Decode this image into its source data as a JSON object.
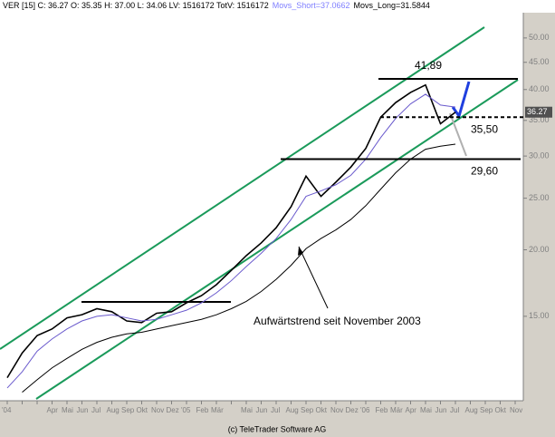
{
  "header": {
    "quote": "VER [15] C: 36.27 O: 35.35 H: 37.00 L: 34.06 LV: 1516172 TotV: 1516172",
    "short_ma": "Movs_Short=37.0662",
    "long_ma": "Movs_Long=31.5844"
  },
  "footer": "(c) TeleTrader Software AG",
  "chart_data": {
    "type": "line",
    "categories": [
      "'04",
      null,
      null,
      "Apr",
      "Mai",
      "Jun",
      "Jul",
      "Aug",
      "Sep",
      "Okt",
      "Nov",
      "Dez",
      "'05",
      "Feb",
      "Mär",
      null,
      "Mai",
      "Jun",
      "Jul",
      "Aug",
      "Sep",
      "Okt",
      "Nov",
      "Dez",
      "'06",
      "Feb",
      "Mär",
      "Apr",
      "Mai",
      "Jun",
      "Jul",
      "Aug",
      "Sep",
      "Okt",
      "Nov"
    ],
    "series": [
      {
        "color": "#000000",
        "values": [
          11.5,
          12.8,
          13.8,
          14.2,
          14.9,
          15.1,
          15.5,
          15.3,
          14.7,
          14.6,
          15.2,
          15.3,
          15.9,
          16.4,
          17.2,
          18.3,
          19.5,
          20.6,
          22.0,
          24.1,
          27.5,
          25.2,
          26.8,
          28.6,
          31.0,
          35.5,
          37.8,
          39.5,
          40.8,
          34.5,
          36.27,
          null,
          null,
          null,
          null
        ]
      },
      {
        "color": "#6a5acd",
        "values": [
          11.0,
          11.8,
          12.9,
          13.6,
          14.2,
          14.7,
          15.0,
          15.1,
          14.9,
          14.7,
          14.8,
          15.1,
          15.4,
          15.9,
          16.6,
          17.5,
          18.6,
          19.7,
          21.0,
          22.8,
          25.2,
          25.8,
          26.5,
          27.6,
          29.6,
          32.5,
          35.3,
          37.6,
          39.2,
          37.4,
          37.07,
          null,
          null,
          null,
          null
        ]
      },
      {
        "color": "#000000",
        "values": [
          null,
          10.8,
          11.4,
          12.0,
          12.5,
          13.0,
          13.4,
          13.7,
          13.9,
          14.0,
          14.2,
          14.4,
          14.6,
          14.8,
          15.1,
          15.5,
          16.0,
          16.7,
          17.6,
          18.7,
          20.1,
          21.0,
          21.8,
          22.8,
          24.2,
          26.0,
          27.9,
          29.6,
          30.9,
          31.3,
          31.58,
          null,
          null,
          null,
          null
        ]
      }
    ],
    "log_scale": true,
    "ylim": [
      10.7,
      57.1
    ],
    "yticks": [
      {
        "value": 15,
        "label": "15.00"
      },
      {
        "value": 20,
        "label": "20.00"
      },
      {
        "value": 25,
        "label": "25.00"
      },
      {
        "value": 30,
        "label": "30.00"
      },
      {
        "value": 35,
        "label": "35.00"
      },
      {
        "value": 40,
        "label": "40.00"
      },
      {
        "value": 45,
        "label": "45.00"
      },
      {
        "value": 50,
        "label": "50.00"
      }
    ],
    "last_price": 36.27,
    "levels": [
      {
        "value": 41.89,
        "label": "41,89"
      },
      {
        "value": 35.5,
        "label": "35,50"
      },
      {
        "value": 29.6,
        "label": "29,60"
      }
    ],
    "annotation": "Aufwärtstrend seit November 2003"
  }
}
